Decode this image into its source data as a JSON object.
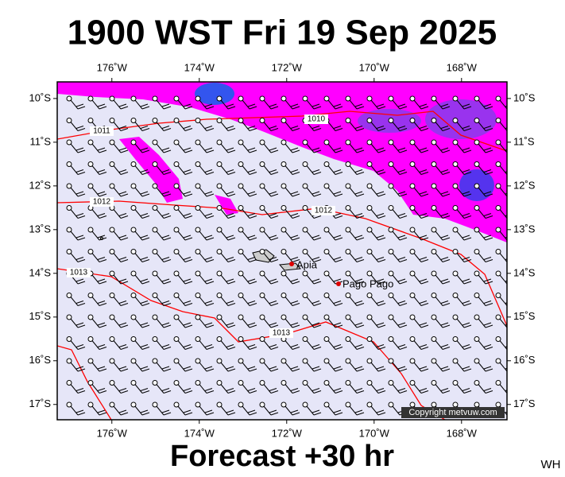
{
  "title": "1900 WST Fri 19 Sep 2025",
  "footer": "Forecast +30 hr",
  "initials": "WH",
  "copyright": "Copyright metvuw.com",
  "map": {
    "xlim": [
      -177.25,
      -166.96
    ],
    "ylim": [
      -17.35,
      -9.62
    ],
    "xticks": [
      {
        "value": -176,
        "label": "176˚W"
      },
      {
        "value": -174,
        "label": "174˚W"
      },
      {
        "value": -172,
        "label": "172˚W"
      },
      {
        "value": -170,
        "label": "170˚W"
      },
      {
        "value": -168,
        "label": "168˚W"
      }
    ],
    "yticks": [
      {
        "value": -10,
        "label": "10˚S"
      },
      {
        "value": -11,
        "label": "11˚S"
      },
      {
        "value": -12,
        "label": "12˚S"
      },
      {
        "value": -13,
        "label": "13˚S"
      },
      {
        "value": -14,
        "label": "14˚S"
      },
      {
        "value": -15,
        "label": "15˚S"
      },
      {
        "value": -16,
        "label": "16˚S"
      },
      {
        "value": -17,
        "label": "17˚S"
      }
    ],
    "isobar_labels": [
      "1011",
      "1010",
      "1012",
      "1012",
      "1013",
      "1013"
    ],
    "places": [
      "Apia",
      "Pago Pago"
    ]
  }
}
